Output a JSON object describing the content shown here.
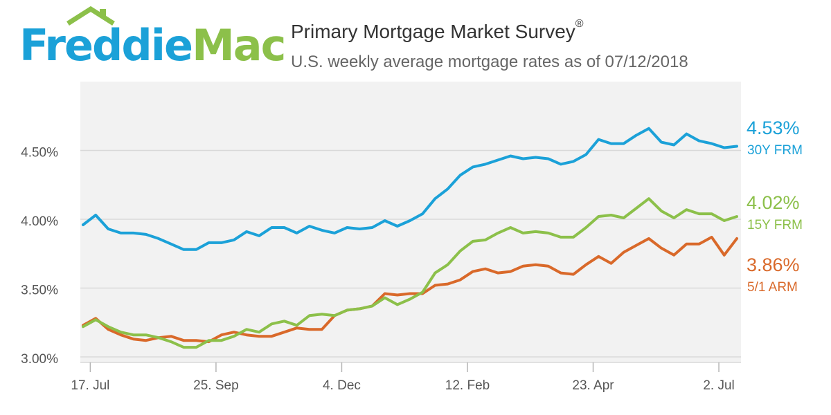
{
  "logo": {
    "word1": "Freddie",
    "word2": "Mac",
    "icon": "house-roof-icon"
  },
  "header": {
    "title": "Primary Mortgage Market Survey",
    "title_mark": "®",
    "subtitle": "U.S. weekly average mortgage rates as of 07/12/2018"
  },
  "colors": {
    "frm30": "#1ba1d8",
    "frm15": "#8cc04a",
    "arm51": "#d9692a",
    "grid": "#d9d9d9",
    "axis_text": "#555555"
  },
  "end_labels": [
    {
      "value": "4.53%",
      "name": "30Y FRM",
      "color": "#1ba1d8"
    },
    {
      "value": "4.02%",
      "name": "15Y FRM",
      "color": "#8cc04a"
    },
    {
      "value": "3.86%",
      "name": "5/1 ARM",
      "color": "#d9692a"
    }
  ],
  "chart_data": {
    "type": "line",
    "title": "Primary Mortgage Market Survey",
    "subtitle": "U.S. weekly average mortgage rates as of 07/12/2018",
    "x_start": "2017-07-13",
    "x_end": "2018-07-12",
    "x_step_days": 7,
    "x_ticks": [
      {
        "label": "17. Jul",
        "date": "2017-07-17"
      },
      {
        "label": "25. Sep",
        "date": "2017-09-25"
      },
      {
        "label": "4. Dec",
        "date": "2017-12-04"
      },
      {
        "label": "12. Feb",
        "date": "2018-02-12"
      },
      {
        "label": "23. Apr",
        "date": "2018-04-23"
      },
      {
        "label": "2. Jul",
        "date": "2018-07-02"
      }
    ],
    "y_ticks": [
      {
        "label": "3.00%",
        "value": 3.0
      },
      {
        "label": "3.50%",
        "value": 3.5
      },
      {
        "label": "4.00%",
        "value": 4.0
      },
      {
        "label": "4.50%",
        "value": 4.5
      }
    ],
    "ylim": [
      2.96,
      5.0
    ],
    "grid": true,
    "legend": "right-end labels",
    "series": [
      {
        "name": "30Y FRM",
        "color": "#1ba1d8",
        "values": [
          3.96,
          4.03,
          3.93,
          3.9,
          3.9,
          3.89,
          3.86,
          3.82,
          3.78,
          3.78,
          3.83,
          3.83,
          3.85,
          3.91,
          3.88,
          3.94,
          3.94,
          3.9,
          3.95,
          3.92,
          3.9,
          3.94,
          3.93,
          3.94,
          3.99,
          3.95,
          3.99,
          4.04,
          4.15,
          4.22,
          4.32,
          4.38,
          4.4,
          4.43,
          4.46,
          4.44,
          4.45,
          4.44,
          4.4,
          4.42,
          4.47,
          4.58,
          4.55,
          4.55,
          4.61,
          4.66,
          4.56,
          4.54,
          4.62,
          4.57,
          4.55,
          4.52,
          4.53
        ]
      },
      {
        "name": "15Y FRM",
        "color": "#8cc04a",
        "values": [
          3.22,
          3.27,
          3.22,
          3.18,
          3.16,
          3.16,
          3.14,
          3.11,
          3.07,
          3.07,
          3.12,
          3.12,
          3.15,
          3.2,
          3.18,
          3.24,
          3.26,
          3.23,
          3.3,
          3.31,
          3.3,
          3.34,
          3.35,
          3.37,
          3.43,
          3.38,
          3.42,
          3.47,
          3.61,
          3.67,
          3.77,
          3.84,
          3.85,
          3.9,
          3.94,
          3.9,
          3.91,
          3.9,
          3.87,
          3.87,
          3.94,
          4.02,
          4.03,
          4.01,
          4.08,
          4.15,
          4.06,
          4.01,
          4.07,
          4.04,
          4.04,
          3.99,
          4.02
        ]
      },
      {
        "name": "5/1 ARM",
        "color": "#d9692a",
        "values": [
          3.23,
          3.28,
          3.2,
          3.16,
          3.13,
          3.12,
          3.14,
          3.15,
          3.12,
          3.12,
          3.11,
          3.16,
          3.18,
          3.16,
          3.15,
          3.15,
          3.18,
          3.21,
          3.2,
          3.2,
          3.3,
          3.34,
          3.35,
          3.37,
          3.46,
          3.45,
          3.46,
          3.46,
          3.52,
          3.53,
          3.56,
          3.62,
          3.64,
          3.61,
          3.62,
          3.66,
          3.67,
          3.66,
          3.61,
          3.6,
          3.67,
          3.73,
          3.68,
          3.76,
          3.81,
          3.86,
          3.79,
          3.74,
          3.82,
          3.82,
          3.87,
          3.74,
          3.86
        ]
      }
    ]
  }
}
